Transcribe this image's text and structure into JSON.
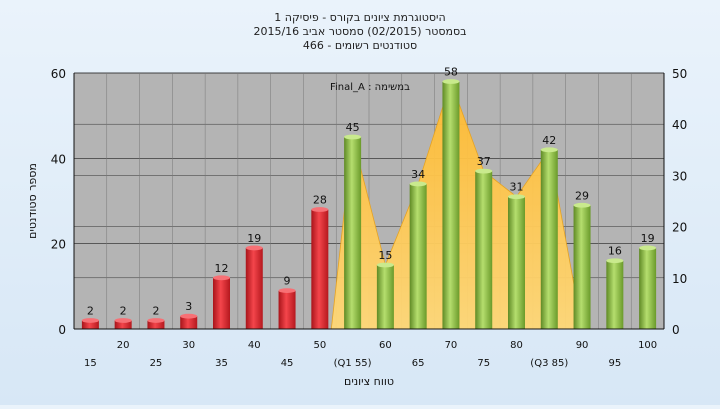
{
  "chart_data": {
    "type": "bar",
    "title_lines": [
      "היסטוגרמת ציונים בקורס - פיסיקה 1",
      "בסמסטר  (02/2015)  סמסטר אביב 2015/16",
      "סטודנטים רשומים - 466"
    ],
    "ylabel": "מספר סטודנטים",
    "xlabel": "טווח ציונים",
    "annotation": "Final_A : במשימה",
    "ylim": [
      0,
      60
    ],
    "yticks": [
      0,
      20,
      40,
      60
    ],
    "y2lim": [
      0,
      50
    ],
    "y2ticks": [
      0,
      10,
      20,
      30,
      40,
      50
    ],
    "categories": [
      "15",
      "20",
      "25",
      "30",
      "35",
      "40",
      "45",
      "50",
      "(Q1 55)",
      "60",
      "65",
      "70",
      "75",
      "80",
      "(Q3 85)",
      "90",
      "95",
      "100"
    ],
    "values": [
      2,
      2,
      2,
      3,
      12,
      19,
      9,
      28,
      45,
      15,
      34,
      58,
      37,
      31,
      42,
      29,
      16,
      19
    ],
    "colors": {
      "fail_bar": "#e8242c",
      "pass_bar": "#8fc14a",
      "area": "#ffc54a",
      "plot_bg": "#b4b4b4"
    },
    "fail_threshold_index": 7
  }
}
